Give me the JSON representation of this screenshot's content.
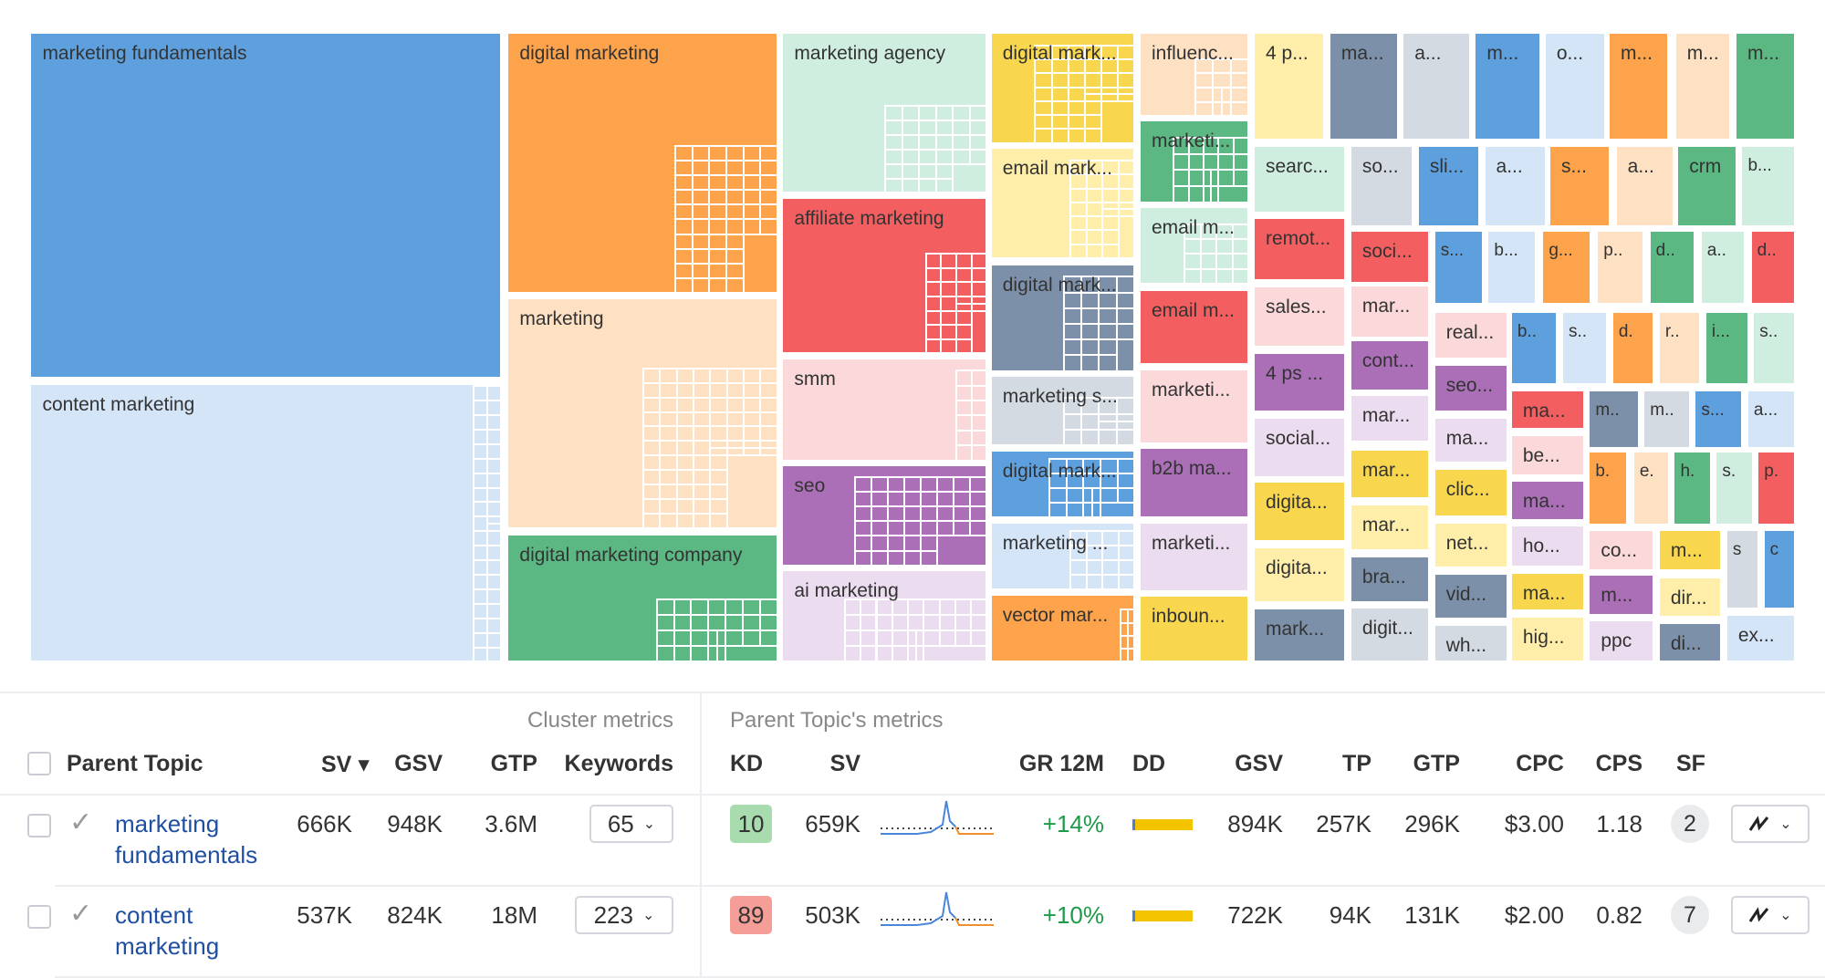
{
  "palette": {
    "blue": "#5ea0de",
    "lightblue": "#d4e5f7",
    "orange": "#fca34c",
    "peach": "#fee0c3",
    "mint": "#cfeedf",
    "red": "#f35f60",
    "pink": "#fbd9da",
    "purple": "#ab6fb7",
    "lavender": "#ecdcef",
    "yellow": "#f8d74f",
    "lightyellow": "#feeeaa",
    "slate": "#7d90a9",
    "lightgray": "#d4dae1",
    "green": "#5cb883"
  },
  "treemap": {
    "tiles": [
      {
        "label": "marketing fundamentals",
        "color": "blue"
      },
      {
        "label": "content marketing",
        "color": "lightblue"
      },
      {
        "label": "digital marketing",
        "color": "orange"
      },
      {
        "label": "marketing",
        "color": "peach"
      },
      {
        "label": "digital marketing company",
        "color": "green"
      },
      {
        "label": "marketing agency",
        "color": "mint"
      },
      {
        "label": "affiliate marketing",
        "color": "red"
      },
      {
        "label": "smm",
        "color": "pink"
      },
      {
        "label": "seo",
        "color": "purple"
      },
      {
        "label": "ai marketing",
        "color": "lavender"
      },
      {
        "label": "digital mark...",
        "color": "yellow"
      },
      {
        "label": "email mark...",
        "color": "lightyellow"
      },
      {
        "label": "digital mark...",
        "color": "slate"
      },
      {
        "label": "marketing s...",
        "color": "lightgray"
      },
      {
        "label": "digital mark...",
        "color": "blue"
      },
      {
        "label": "marketing ...",
        "color": "lightblue"
      },
      {
        "label": "vector mar...",
        "color": "orange"
      },
      {
        "label": "influenc...",
        "color": "peach"
      },
      {
        "label": "marketi...",
        "color": "green"
      },
      {
        "label": "email m...",
        "color": "mint"
      },
      {
        "label": "email m...",
        "color": "red"
      },
      {
        "label": "marketi...",
        "color": "pink"
      },
      {
        "label": "b2b ma...",
        "color": "purple"
      },
      {
        "label": "marketi...",
        "color": "lavender"
      },
      {
        "label": "inboun...",
        "color": "yellow"
      },
      {
        "label": "4 p...",
        "color": "lightyellow"
      },
      {
        "label": "ma...",
        "color": "slate"
      },
      {
        "label": "a...",
        "color": "lightgray"
      },
      {
        "label": "m...",
        "color": "blue"
      },
      {
        "label": "o...",
        "color": "lightblue"
      },
      {
        "label": "m...",
        "color": "orange"
      },
      {
        "label": "m...",
        "color": "peach"
      },
      {
        "label": "m...",
        "color": "green"
      },
      {
        "label": "searc...",
        "color": "mint"
      },
      {
        "label": "remot...",
        "color": "red"
      },
      {
        "label": "sales...",
        "color": "pink"
      },
      {
        "label": "4 ps ...",
        "color": "purple"
      },
      {
        "label": "social...",
        "color": "lavender"
      },
      {
        "label": "digita...",
        "color": "yellow"
      },
      {
        "label": "digita...",
        "color": "lightyellow"
      },
      {
        "label": "mark...",
        "color": "slate"
      },
      {
        "label": "so...",
        "color": "lightgray"
      },
      {
        "label": "soci...",
        "color": "red"
      },
      {
        "label": "mar...",
        "color": "pink"
      },
      {
        "label": "cont...",
        "color": "purple"
      },
      {
        "label": "mar...",
        "color": "lavender"
      },
      {
        "label": "mar...",
        "color": "yellow"
      },
      {
        "label": "mar...",
        "color": "lightyellow"
      },
      {
        "label": "bra...",
        "color": "slate"
      },
      {
        "label": "digit...",
        "color": "lightgray"
      },
      {
        "label": "sli...",
        "color": "blue"
      },
      {
        "label": "a...",
        "color": "lightblue"
      },
      {
        "label": "s...",
        "color": "orange"
      },
      {
        "label": "a...",
        "color": "peach"
      },
      {
        "label": "crm",
        "color": "green"
      },
      {
        "label": "b...",
        "color": "mint"
      },
      {
        "label": "s...",
        "color": "blue"
      },
      {
        "label": "b...",
        "color": "lightblue"
      },
      {
        "label": "g...",
        "color": "orange"
      },
      {
        "label": "p..",
        "color": "peach"
      },
      {
        "label": "d..",
        "color": "green"
      },
      {
        "label": "a..",
        "color": "mint"
      },
      {
        "label": "d..",
        "color": "red"
      },
      {
        "label": "real...",
        "color": "pink"
      },
      {
        "label": "seo...",
        "color": "purple"
      },
      {
        "label": "ma...",
        "color": "lavender"
      },
      {
        "label": "clic...",
        "color": "yellow"
      },
      {
        "label": "net...",
        "color": "lightyellow"
      },
      {
        "label": "vid...",
        "color": "slate"
      },
      {
        "label": "wh...",
        "color": "lightgray"
      },
      {
        "label": "b..",
        "color": "blue"
      },
      {
        "label": "s..",
        "color": "lightblue"
      },
      {
        "label": "d.",
        "color": "orange"
      },
      {
        "label": "r..",
        "color": "peach"
      },
      {
        "label": "i...",
        "color": "green"
      },
      {
        "label": "s..",
        "color": "mint"
      },
      {
        "label": "ma...",
        "color": "red"
      },
      {
        "label": "be...",
        "color": "pink"
      },
      {
        "label": "ma...",
        "color": "purple"
      },
      {
        "label": "ho...",
        "color": "lavender"
      },
      {
        "label": "ma...",
        "color": "yellow"
      },
      {
        "label": "hig...",
        "color": "lightyellow"
      },
      {
        "label": "m..",
        "color": "slate"
      },
      {
        "label": "m..",
        "color": "lightgray"
      },
      {
        "label": "s...",
        "color": "blue"
      },
      {
        "label": "a...",
        "color": "lightblue"
      },
      {
        "label": "b.",
        "color": "orange"
      },
      {
        "label": "e.",
        "color": "peach"
      },
      {
        "label": "h.",
        "color": "green"
      },
      {
        "label": "s.",
        "color": "mint"
      },
      {
        "label": "p.",
        "color": "red"
      },
      {
        "label": "co...",
        "color": "pink"
      },
      {
        "label": "m...",
        "color": "purple"
      },
      {
        "label": "ppc",
        "color": "lavender"
      },
      {
        "label": "m...",
        "color": "yellow"
      },
      {
        "label": "dir...",
        "color": "lightyellow"
      },
      {
        "label": "di...",
        "color": "slate"
      },
      {
        "label": "s",
        "color": "lightgray"
      },
      {
        "label": "c",
        "color": "blue"
      },
      {
        "label": "ex...",
        "color": "lightblue"
      }
    ]
  },
  "table": {
    "group_cluster": "Cluster metrics",
    "group_parent": "Parent Topic's metrics",
    "headers": {
      "parent_topic": "Parent Topic",
      "sv": "SV",
      "sort_indicator": "▾",
      "gsv": "GSV",
      "gtp": "GTP",
      "keywords": "Keywords",
      "kd": "KD",
      "pt_sv": "SV",
      "gr12m": "GR 12M",
      "dd": "DD",
      "pt_gsv": "GSV",
      "tp": "TP",
      "pt_gtp": "GTP",
      "cpc": "CPC",
      "cps": "CPS",
      "sf": "SF"
    },
    "rows": [
      {
        "topic_line1": "marketing",
        "topic_line2": "fundamentals",
        "sv": "666K",
        "gsv": "948K",
        "gtp": "3.6M",
        "keywords": "65",
        "kd": "10",
        "kd_color": "#a8dcae",
        "pt_sv": "659K",
        "gr12m": "+14%",
        "pt_gsv": "894K",
        "tp": "257K",
        "pt_gtp": "296K",
        "cpc": "$3.00",
        "cps": "1.18",
        "sf": "2"
      },
      {
        "topic_line1": "content",
        "topic_line2": "marketing",
        "sv": "537K",
        "gsv": "824K",
        "gtp": "18M",
        "keywords": "223",
        "kd": "89",
        "kd_color": "#f59e97",
        "pt_sv": "503K",
        "gr12m": "+10%",
        "pt_gsv": "722K",
        "tp": "94K",
        "pt_gtp": "131K",
        "cpc": "$2.00",
        "cps": "0.82",
        "sf": "7"
      }
    ]
  }
}
